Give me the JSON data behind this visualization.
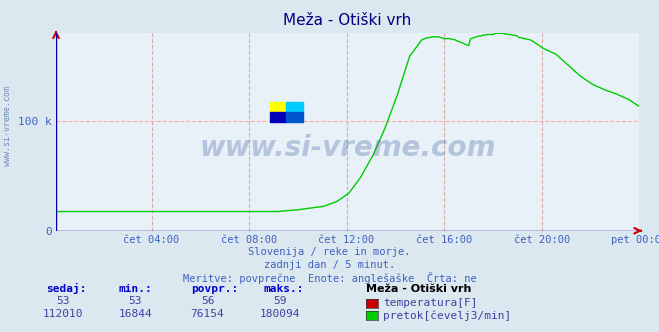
{
  "title": "Meža - Otiški vrh",
  "bg_color": "#dce8f0",
  "plot_bg_color": "#e8f0f8",
  "title_color": "#000080",
  "watermark_text": "www.si-vreme.com",
  "watermark_color": "#4060a0",
  "watermark_alpha": 0.3,
  "subtitle_lines": [
    "Slovenija / reke in morje.",
    "zadnji dan / 5 minut.",
    "Meritve: povprečne  Enote: anglešaške  Črta: ne"
  ],
  "subtitle_color": "#4060c0",
  "x_tick_labels": [
    "čet 04:00",
    "čet 08:00",
    "čet 12:00",
    "čet 16:00",
    "čet 20:00",
    "pet 00:00"
  ],
  "ylim": [
    0,
    180094
  ],
  "ytick_vals": [
    0,
    100000
  ],
  "ytick_labels": [
    "0",
    "100 k"
  ],
  "temp_color": "#cc0000",
  "flow_color": "#00cc00",
  "legend_title": "Meža - Otiški vrh",
  "legend_items": [
    {
      "label": "temperatura[F]",
      "color": "#cc0000"
    },
    {
      "label": "pretok[čevelj3/min]",
      "color": "#00cc00"
    }
  ],
  "table_headers": [
    "sedaj:",
    "min.:",
    "povpr.:",
    "maks.:"
  ],
  "table_temp": [
    53,
    53,
    56,
    59
  ],
  "table_flow": [
    112010,
    16844,
    76154,
    180094
  ],
  "left_label": "www.si-vreme.com",
  "left_label_color": "#4060a0",
  "grid_v_color": "#ddaaaa",
  "grid_h_color": "#ffaaaa",
  "axis_color": "#0000aa",
  "arrow_color": "#cc0000"
}
